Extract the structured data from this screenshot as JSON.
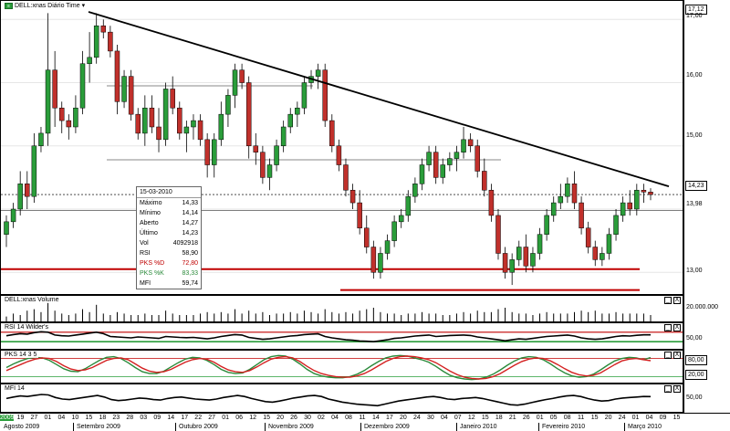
{
  "chart_data": [
    {
      "type": "candlestick",
      "title": "DELL:xnas Diário Time",
      "y_ticks": [
        "17,00",
        "16,00",
        "15,00",
        "14,00",
        "13,00"
      ],
      "y_range": [
        12.7,
        17.12
      ],
      "y_markers": [
        "17,12",
        "14,23",
        "13,98"
      ],
      "last_close": 14.23,
      "ohlc": [
        [
          13.6,
          13.9,
          13.4,
          13.8
        ],
        [
          13.8,
          14.1,
          13.7,
          14.0
        ],
        [
          14.0,
          14.6,
          13.9,
          14.4
        ],
        [
          14.4,
          14.6,
          14.0,
          14.2
        ],
        [
          14.2,
          15.2,
          14.1,
          15.0
        ],
        [
          15.0,
          15.3,
          14.9,
          15.2
        ],
        [
          15.2,
          17.1,
          15.0,
          16.2
        ],
        [
          16.2,
          16.5,
          15.3,
          15.6
        ],
        [
          15.6,
          15.7,
          15.2,
          15.4
        ],
        [
          15.4,
          15.5,
          15.1,
          15.3
        ],
        [
          15.3,
          15.8,
          15.2,
          15.6
        ],
        [
          15.6,
          16.5,
          15.5,
          16.3
        ],
        [
          16.3,
          16.8,
          16.0,
          16.4
        ],
        [
          16.4,
          17.1,
          16.3,
          16.9
        ],
        [
          16.9,
          17.0,
          16.7,
          16.8
        ],
        [
          16.8,
          16.9,
          16.4,
          16.5
        ],
        [
          16.5,
          16.6,
          15.5,
          15.7
        ],
        [
          15.7,
          16.2,
          15.6,
          16.1
        ],
        [
          16.1,
          16.2,
          15.4,
          15.5
        ],
        [
          15.5,
          15.6,
          15.1,
          15.2
        ],
        [
          15.2,
          15.8,
          15.0,
          15.6
        ],
        [
          15.6,
          15.8,
          15.2,
          15.3
        ],
        [
          15.3,
          15.6,
          14.9,
          15.1
        ],
        [
          15.1,
          16.0,
          15.0,
          15.9
        ],
        [
          15.9,
          16.1,
          15.5,
          15.6
        ],
        [
          15.6,
          15.7,
          15.1,
          15.2
        ],
        [
          15.2,
          15.4,
          14.9,
          15.3
        ],
        [
          15.3,
          15.5,
          15.1,
          15.4
        ],
        [
          15.4,
          15.5,
          15.0,
          15.1
        ],
        [
          15.1,
          15.2,
          14.5,
          14.7
        ],
        [
          14.7,
          15.2,
          14.5,
          15.1
        ],
        [
          15.1,
          15.7,
          15.0,
          15.5
        ],
        [
          15.5,
          15.9,
          15.3,
          15.8
        ],
        [
          15.8,
          16.3,
          15.6,
          16.2
        ],
        [
          16.2,
          16.3,
          15.9,
          16.0
        ],
        [
          16.0,
          16.1,
          14.8,
          15.0
        ],
        [
          15.0,
          15.2,
          14.7,
          14.9
        ],
        [
          14.9,
          15.0,
          14.4,
          14.5
        ],
        [
          14.5,
          14.8,
          14.3,
          14.7
        ],
        [
          14.7,
          15.1,
          14.6,
          15.0
        ],
        [
          15.0,
          15.4,
          14.9,
          15.3
        ],
        [
          15.3,
          15.6,
          15.2,
          15.5
        ],
        [
          15.5,
          15.7,
          15.3,
          15.6
        ],
        [
          15.6,
          16.1,
          15.5,
          16.0
        ],
        [
          16.0,
          16.2,
          15.9,
          16.1
        ],
        [
          16.1,
          16.3,
          15.9,
          16.2
        ],
        [
          16.2,
          16.3,
          15.3,
          15.4
        ],
        [
          15.4,
          15.5,
          14.9,
          15.0
        ],
        [
          15.0,
          15.1,
          14.6,
          14.7
        ],
        [
          14.7,
          14.8,
          14.2,
          14.3
        ],
        [
          14.3,
          14.4,
          14.0,
          14.1
        ],
        [
          14.1,
          14.3,
          13.6,
          13.7
        ],
        [
          13.7,
          13.9,
          13.3,
          13.4
        ],
        [
          13.4,
          13.5,
          12.9,
          13.0
        ],
        [
          13.0,
          13.4,
          12.9,
          13.3
        ],
        [
          13.3,
          13.6,
          13.2,
          13.5
        ],
        [
          13.5,
          13.9,
          13.4,
          13.8
        ],
        [
          13.8,
          14.0,
          13.7,
          13.9
        ],
        [
          13.9,
          14.3,
          13.8,
          14.2
        ],
        [
          14.2,
          14.5,
          14.1,
          14.4
        ],
        [
          14.4,
          14.8,
          14.3,
          14.7
        ],
        [
          14.7,
          15.0,
          14.6,
          14.9
        ],
        [
          14.9,
          15.0,
          14.4,
          14.5
        ],
        [
          14.5,
          14.8,
          14.4,
          14.7
        ],
        [
          14.7,
          14.9,
          14.6,
          14.8
        ],
        [
          14.8,
          15.0,
          14.6,
          14.9
        ],
        [
          14.9,
          15.3,
          14.8,
          15.1
        ],
        [
          15.1,
          15.2,
          14.9,
          15.0
        ],
        [
          15.0,
          15.1,
          14.5,
          14.6
        ],
        [
          14.6,
          14.8,
          14.2,
          14.3
        ],
        [
          14.3,
          14.4,
          13.8,
          13.9
        ],
        [
          13.9,
          14.0,
          13.2,
          13.3
        ],
        [
          13.3,
          13.4,
          12.9,
          13.0
        ],
        [
          13.0,
          13.3,
          12.8,
          13.2
        ],
        [
          13.2,
          13.5,
          13.1,
          13.4
        ],
        [
          13.4,
          13.6,
          13.0,
          13.1
        ],
        [
          13.1,
          13.4,
          13.0,
          13.3
        ],
        [
          13.3,
          13.7,
          13.2,
          13.6
        ],
        [
          13.6,
          14.0,
          13.5,
          13.9
        ],
        [
          13.9,
          14.2,
          13.8,
          14.1
        ],
        [
          14.1,
          14.4,
          14.0,
          14.2
        ],
        [
          14.2,
          14.5,
          14.1,
          14.4
        ],
        [
          14.4,
          14.6,
          14.0,
          14.1
        ],
        [
          14.1,
          14.2,
          13.6,
          13.7
        ],
        [
          13.7,
          13.8,
          13.3,
          13.4
        ],
        [
          13.4,
          13.5,
          13.1,
          13.2
        ],
        [
          13.2,
          13.4,
          13.1,
          13.3
        ],
        [
          13.3,
          13.7,
          13.2,
          13.6
        ],
        [
          13.6,
          14.0,
          13.5,
          13.9
        ],
        [
          13.9,
          14.2,
          13.8,
          14.1
        ],
        [
          14.1,
          14.3,
          13.9,
          14.0
        ],
        [
          14.0,
          14.4,
          13.9,
          14.3
        ],
        [
          14.3,
          14.4,
          14.1,
          14.27
        ],
        [
          14.27,
          14.33,
          14.14,
          14.23
        ]
      ],
      "support_levels": [
        13.05,
        12.72
      ],
      "resistance_zone": [
        15.95,
        14.78
      ]
    },
    {
      "type": "bar",
      "title": "DELL:xnas Volume",
      "y_ticks": [
        "20.000.000"
      ]
    },
    {
      "type": "line",
      "title": "RSI 14 Wilder's",
      "y_ticks": [
        "50,00"
      ],
      "y_range": [
        0,
        100
      ],
      "levels": [
        70,
        30
      ],
      "values": [
        55,
        60,
        64,
        62,
        68,
        72,
        70,
        58,
        55,
        54,
        58,
        62,
        66,
        70,
        64,
        52,
        50,
        48,
        46,
        50,
        48,
        46,
        44,
        52,
        50,
        48,
        47,
        48,
        45,
        42,
        46,
        52,
        56,
        60,
        58,
        48,
        44,
        40,
        42,
        46,
        50,
        54,
        56,
        60,
        62,
        63,
        52,
        46,
        42,
        38,
        36,
        33,
        32,
        30,
        34,
        38,
        44,
        46,
        50,
        54,
        56,
        58,
        52,
        54,
        56,
        57,
        58,
        56,
        50,
        46,
        42,
        38,
        34,
        38,
        42,
        40,
        44,
        48,
        52,
        54,
        56,
        58,
        54,
        46,
        42,
        40,
        42,
        47,
        52,
        55,
        54,
        57,
        59,
        58.9
      ]
    },
    {
      "type": "line",
      "title": "PKS 14 3 5",
      "y_ticks": [
        "80,00",
        "20,00"
      ],
      "y_range": [
        0,
        100
      ],
      "levels": [
        80,
        20
      ],
      "series": [
        {
          "name": "PKS %D",
          "values": [
            40,
            50,
            60,
            70,
            78,
            82,
            80,
            70,
            56,
            45,
            40,
            42,
            50,
            62,
            74,
            80,
            82,
            76,
            62,
            48,
            38,
            34,
            36,
            44,
            56,
            68,
            76,
            80,
            78,
            68,
            54,
            42,
            36,
            34,
            40,
            52,
            66,
            78,
            84,
            86,
            82,
            70,
            54,
            40,
            30,
            24,
            20,
            18,
            18,
            22,
            30,
            42,
            56,
            70,
            80,
            86,
            88,
            86,
            82,
            76,
            66,
            52,
            38,
            26,
            18,
            14,
            12,
            14,
            20,
            30,
            44,
            58,
            70,
            78,
            82,
            80,
            72,
            60,
            46,
            34,
            26,
            22,
            24,
            32,
            46,
            60,
            72,
            78,
            80,
            76,
            72.8
          ]
        },
        {
          "name": "PKS %K",
          "values": [
            50,
            62,
            72,
            80,
            84,
            82,
            74,
            60,
            46,
            38,
            36,
            46,
            60,
            74,
            84,
            86,
            80,
            66,
            50,
            36,
            30,
            30,
            38,
            52,
            66,
            78,
            84,
            82,
            74,
            60,
            44,
            34,
            30,
            32,
            44,
            60,
            76,
            86,
            90,
            88,
            78,
            62,
            44,
            30,
            22,
            18,
            16,
            16,
            20,
            28,
            40,
            56,
            70,
            82,
            88,
            90,
            88,
            82,
            76,
            68,
            54,
            38,
            24,
            16,
            12,
            10,
            12,
            18,
            28,
            42,
            58,
            72,
            82,
            86,
            84,
            76,
            62,
            46,
            32,
            22,
            18,
            20,
            28,
            42,
            58,
            72,
            80,
            84,
            82,
            76,
            83.3
          ]
        }
      ]
    },
    {
      "type": "line",
      "title": "MFI 14",
      "y_ticks": [
        "50,00"
      ],
      "y_range": [
        0,
        100
      ],
      "values": [
        52,
        58,
        62,
        60,
        64,
        68,
        66,
        56,
        50,
        48,
        52,
        56,
        60,
        64,
        58,
        48,
        44,
        46,
        50,
        54,
        52,
        48,
        46,
        52,
        56,
        58,
        54,
        50,
        48,
        46,
        50,
        56,
        60,
        64,
        60,
        52,
        46,
        40,
        38,
        42,
        48,
        54,
        58,
        62,
        64,
        60,
        50,
        44,
        38,
        34,
        30,
        28,
        26,
        24,
        30,
        36,
        42,
        46,
        50,
        54,
        58,
        60,
        56,
        50,
        48,
        52,
        54,
        56,
        52,
        46,
        40,
        34,
        28,
        26,
        30,
        36,
        42,
        48,
        52,
        58,
        62,
        64,
        60,
        52,
        46,
        42,
        44,
        50,
        54,
        56,
        58,
        60,
        59.7
      ]
    }
  ],
  "header": {
    "symbol_label": "DELL:xnas Diário Time",
    "symbol_icon": "chart-icon",
    "dropdown_icon": "chevron-down-icon",
    "right_top_value": "17,12"
  },
  "price_axis": {
    "ticks": [
      "17,00",
      "16,00",
      "15,00",
      "14,00",
      "13,00"
    ],
    "box_top": "17,12",
    "box_last": "14,23",
    "box_ref": "13,98"
  },
  "info_box": {
    "date": "15-03-2010",
    "rows": [
      {
        "label": "Máximo",
        "value": "14,33",
        "color": "#000000"
      },
      {
        "label": "Mínimo",
        "value": "14,14",
        "color": "#000000"
      },
      {
        "label": "Aberto",
        "value": "14,27",
        "color": "#000000"
      },
      {
        "label": "Último",
        "value": "14,23",
        "color": "#000000"
      },
      {
        "label": "Vol",
        "value": "4092918",
        "color": "#000000"
      },
      {
        "label": "RSI",
        "value": "58,90",
        "color": "#000000"
      },
      {
        "label": "PKS %D",
        "value": "72,80",
        "color": "#c00000"
      },
      {
        "label": "PKS %K",
        "value": "83,33",
        "color": "#2a8a3a"
      },
      {
        "label": "MFI",
        "value": "59,74",
        "color": "#000000"
      }
    ]
  },
  "volume_panel": {
    "title": "DELL:xnas Volume",
    "axis": "20.000.000"
  },
  "rsi_panel": {
    "title": "RSI 14 Wilder's",
    "axis": "50,00"
  },
  "pks_panel": {
    "title": "PKS 14 3 5",
    "axis_top": "80,00",
    "axis_bottom": "20,00"
  },
  "mfi_panel": {
    "title": "MFI 14",
    "axis": "50,00"
  },
  "panel_controls": {
    "minimize": "_",
    "close": "X"
  },
  "date_axis": {
    "days": [
      "2009",
      "19",
      "27",
      "01",
      "04",
      "10",
      "15",
      "18",
      "23",
      "28",
      "03",
      "09",
      "14",
      "17",
      "22",
      "27",
      "01",
      "06",
      "12",
      "15",
      "20",
      "26",
      "30",
      "02",
      "04",
      "08",
      "11",
      "14",
      "17",
      "20",
      "24",
      "30",
      "04",
      "07",
      "12",
      "15",
      "18",
      "21",
      "26",
      "01",
      "05",
      "08",
      "11",
      "15",
      "20",
      "24",
      "01",
      "04",
      "09",
      "15"
    ],
    "months": [
      "Agosto 2009",
      "Setembro 2009",
      "Outubro 2009",
      "Novembro 2009",
      "Dezembro 2009",
      "Janeiro 2010",
      "Fevereiro 2010",
      "Março 2010"
    ]
  },
  "colors": {
    "candle_up": "#2a9d3a",
    "candle_down": "#c0302b",
    "trendline": "#000000",
    "support": "#c00000",
    "stoch_d": "#d42020",
    "stoch_k": "#2a8a3a",
    "level_green": "#2a9d3a"
  }
}
